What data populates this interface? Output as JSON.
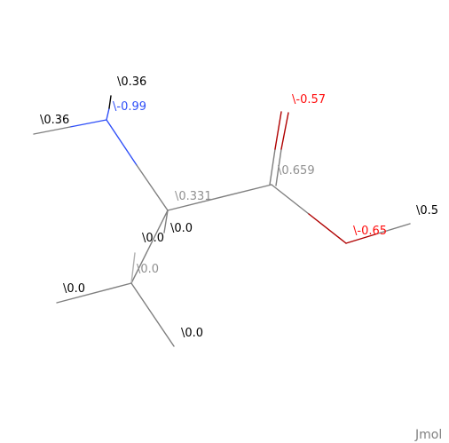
{
  "app": {
    "brand": "Jmol"
  },
  "colors": {
    "carbon": "#909090",
    "hydrogen": "#000000",
    "nitrogen": "#3050F8",
    "oxygen": "#FF0D0D",
    "bond": "#7f7f7f"
  },
  "atom_labels": [
    {
      "id": "h_n_top",
      "element": "H",
      "text": "\\0.36"
    },
    {
      "id": "n",
      "element": "N",
      "text": "\\-0.99"
    },
    {
      "id": "h_n_left",
      "element": "H",
      "text": "\\0.36"
    },
    {
      "id": "o_dbl",
      "element": "O",
      "text": "\\-0.57"
    },
    {
      "id": "c_carb",
      "element": "C",
      "text": "\\0.659"
    },
    {
      "id": "h_o",
      "element": "H",
      "text": "\\0.5"
    },
    {
      "id": "c_alpha",
      "element": "C",
      "text": "\\0.331"
    },
    {
      "id": "h_alpha",
      "element": "H",
      "text": "\\0.0"
    },
    {
      "id": "o_oh",
      "element": "O",
      "text": "\\-0.65"
    },
    {
      "id": "h_beta_1",
      "element": "H",
      "text": "\\0.0"
    },
    {
      "id": "c_beta",
      "element": "C",
      "text": "\\0.0"
    },
    {
      "id": "h_beta_2",
      "element": "H",
      "text": "\\0.0"
    },
    {
      "id": "h_beta_3",
      "element": "H",
      "text": "\\0.0"
    }
  ]
}
